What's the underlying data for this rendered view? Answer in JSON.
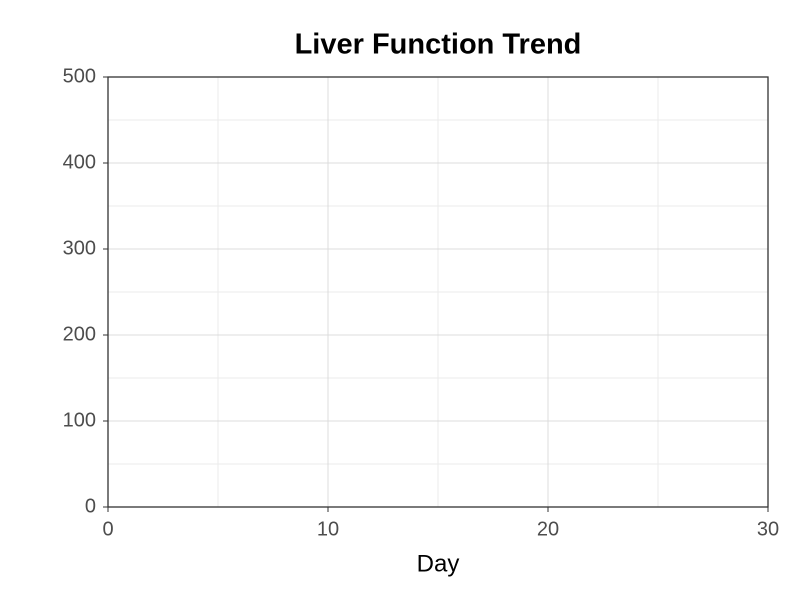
{
  "chart_data": {
    "type": "line",
    "title": "Liver Function Trend",
    "x_label": "Day",
    "series": [],
    "xlim": [
      0,
      30
    ],
    "xticks": [
      0,
      10,
      20,
      30
    ],
    "minor_xticks": [
      5,
      15,
      25
    ],
    "ylim": [
      0,
      500
    ],
    "yticks": [
      0,
      100,
      200,
      300,
      400,
      500
    ],
    "minor_yticks": [
      50,
      150,
      250,
      350,
      450
    ],
    "grid": true
  }
}
